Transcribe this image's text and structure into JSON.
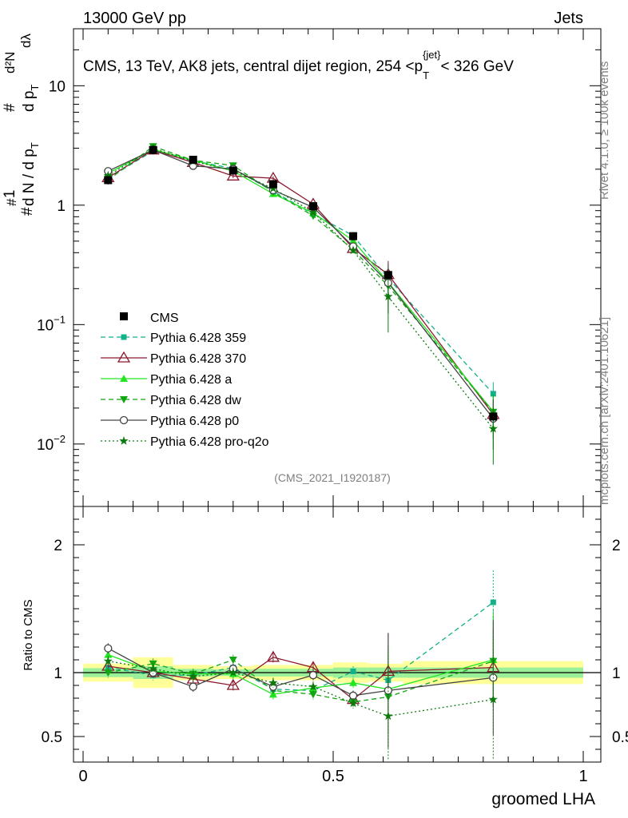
{
  "header": {
    "left": "13000 GeV pp",
    "right": "Jets"
  },
  "side": {
    "rivet": "Rivet 4.1.0, ≥ 100k events",
    "source": "mcplots.cern.ch [arXiv:2401.10621]"
  },
  "chart_data": {
    "type": "line",
    "title": "CMS, 13 TeV, AK8 jets, central dijet region, 254 <p_T^{jet}< 326 GeV",
    "title_parts": {
      "main": "CMS, 13 TeV, AK8 jets, central dijet region, 254 <p",
      "sub": "T",
      "sup": "{jet",
      "sup_close": "}",
      "tail": "< 326 GeV"
    },
    "analysis_id": "(CMS_2021_I1920187)",
    "xlabel": "groomed LHA",
    "ylabel": "1/dN/dp_T d^2N/dp_T dlambda",
    "ylabel_parts": {
      "hash": "#",
      "one": "1",
      "dN": "d N / d p",
      "T": "T",
      "hash2": "#",
      "d2N": "d²N",
      "dp": "d p",
      "T2": "T",
      "dl": "dλ"
    },
    "ratio_ylabel": "Ratio to CMS",
    "xlim": [
      0,
      1
    ],
    "ylim_main": [
      0.003,
      30
    ],
    "yscale_main": "log",
    "ylim_ratio": [
      0.3,
      2.3
    ],
    "x_ticks": [
      "0",
      "0.5",
      "1"
    ],
    "main_y_ticks": [
      {
        "value": 10,
        "label": "10",
        "sup": ""
      },
      {
        "value": 1,
        "label": "1",
        "sup": ""
      },
      {
        "value": 0.1,
        "label": "10",
        "sup": "−1"
      },
      {
        "value": 0.01,
        "label": "10",
        "sup": "−2"
      }
    ],
    "ratio_y_ticks": [
      "2",
      "1",
      "0.5"
    ],
    "x": [
      0.05,
      0.14,
      0.22,
      0.3,
      0.38,
      0.46,
      0.54,
      0.61,
      0.82
    ],
    "cms": {
      "name": "CMS",
      "values": [
        1.62,
        2.9,
        2.4,
        1.95,
        1.5,
        0.98,
        0.55,
        0.26,
        0.017
      ]
    },
    "band_edges": [
      0.0,
      0.1,
      0.18,
      0.26,
      0.34,
      0.42,
      0.5,
      0.57,
      0.64,
      1.0
    ],
    "band_inner": [
      0.035,
      0.05,
      0.03,
      0.025,
      0.03,
      0.03,
      0.04,
      0.04,
      0.04
    ],
    "band_outer": [
      0.07,
      0.12,
      0.06,
      0.05,
      0.06,
      0.06,
      0.08,
      0.07,
      0.09
    ],
    "legend_title": "CMS",
    "series": [
      {
        "name": "Pythia 6.428 359",
        "color": "#13b08a",
        "dash": "6,4",
        "marker": "square",
        "ratios": [
          1.04,
          0.98,
          0.98,
          1.04,
          0.87,
          0.86,
          1.01,
          0.94,
          1.55
        ]
      },
      {
        "name": "Pythia 6.428 370",
        "color": "#8b1a2e",
        "dash": "",
        "marker": "triangle-open",
        "ratios": [
          1.05,
          1.0,
          0.95,
          0.9,
          1.12,
          1.04,
          0.79,
          1.01,
          1.04
        ]
      },
      {
        "name": "Pythia 6.428 a",
        "color": "#22e622",
        "dash": "",
        "marker": "triangle",
        "ratios": [
          1.14,
          1.01,
          0.99,
          0.99,
          0.83,
          0.88,
          0.92,
          0.87,
          1.1
        ]
      },
      {
        "name": "Pythia 6.428 dw",
        "color": "#11a611",
        "dash": "6,4",
        "marker": "triangle-down",
        "ratios": [
          1.0,
          1.07,
          0.99,
          1.1,
          0.86,
          0.83,
          0.77,
          0.81,
          1.09
        ]
      },
      {
        "name": "Pythia 6.428 p0",
        "color": "#444444",
        "dash": "",
        "marker": "circle-open",
        "ratios": [
          1.19,
          1.0,
          0.89,
          1.03,
          0.89,
          0.98,
          0.82,
          0.86,
          0.96
        ]
      },
      {
        "name": "Pythia 6.428 pro-q2o",
        "color": "#0d7a0d",
        "dash": "2,3",
        "marker": "star",
        "ratios": [
          1.09,
          1.03,
          0.97,
          1.0,
          0.92,
          0.89,
          0.76,
          0.66,
          0.79
        ]
      }
    ]
  }
}
